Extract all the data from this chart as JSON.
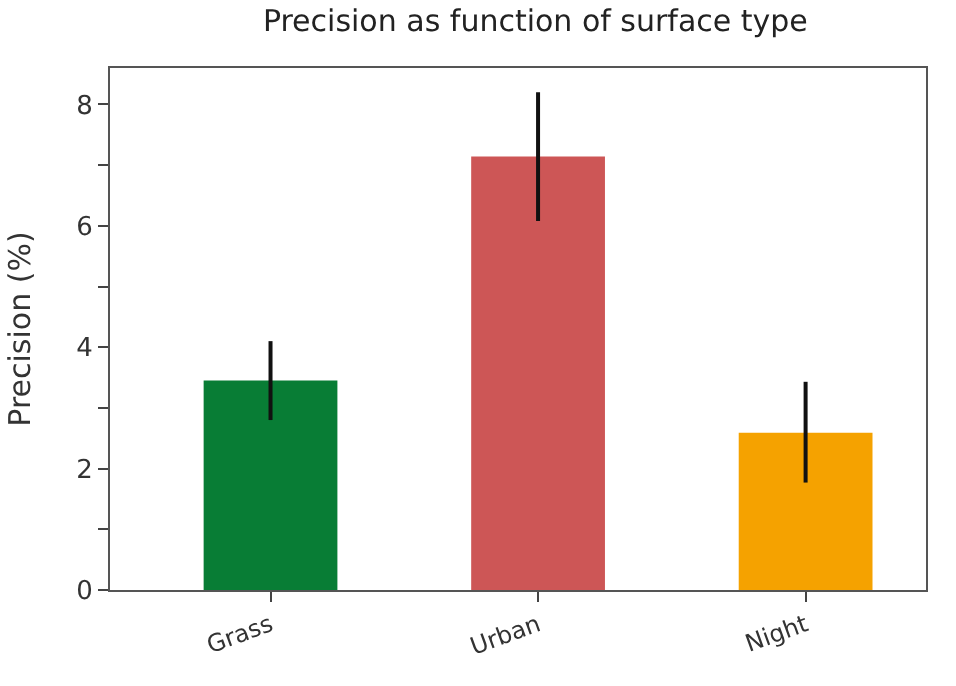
{
  "chart_data": {
    "type": "bar",
    "title": "Precision as function of surface type",
    "ylabel": "Precision (%)",
    "categories": [
      "Grass",
      "Urban",
      "Night"
    ],
    "values": [
      3.45,
      7.14,
      2.59
    ],
    "colors": [
      "#087d35",
      "#cd5656",
      "#f5a200"
    ],
    "errors": [
      [
        2.8,
        4.1
      ],
      [
        6.08,
        8.2
      ],
      [
        1.77,
        3.43
      ]
    ],
    "ylim": [
      0,
      8.6
    ],
    "yticks": [
      0,
      {
        "value": 1,
        "label": null
      },
      2,
      {
        "value": 3,
        "label": null
      },
      4,
      {
        "value": 5,
        "label": null
      },
      6,
      {
        "value": 7,
        "label": null
      },
      8
    ],
    "grid": false
  }
}
